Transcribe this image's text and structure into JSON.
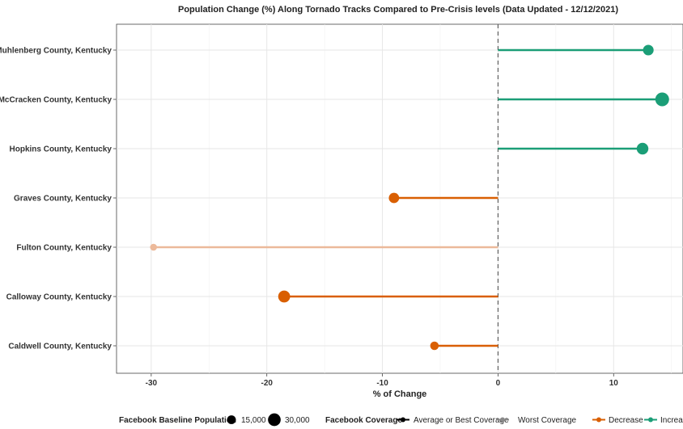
{
  "chart_data": {
    "type": "lollipop",
    "title": "Population Change (%) Along Tornado Tracks Compared to Pre-Crisis levels (Data Updated - 12/12/2021)",
    "xlabel": "% of Change",
    "ylabel": "",
    "xlim": [
      -33,
      16
    ],
    "x_ticks": [
      -30,
      -20,
      -10,
      0,
      10
    ],
    "x_tick_labels": [
      "-30",
      "-20",
      "-10",
      "0",
      "10"
    ],
    "grid": true,
    "reference_line": 0,
    "categories": [
      "Muhlenberg County, Kentucky",
      "McCracken County, Kentucky",
      "Hopkins County, Kentucky",
      "Graves County, Kentucky",
      "Fulton County, Kentucky",
      "Calloway County, Kentucky",
      "Caldwell County, Kentucky"
    ],
    "values": [
      13.0,
      14.2,
      12.5,
      -9.0,
      -29.8,
      -18.5,
      -5.5
    ],
    "direction": [
      "Increase",
      "Increase",
      "Increase",
      "Decrease",
      "Decrease",
      "Decrease",
      "Decrease"
    ],
    "coverage": [
      "Average or Best Coverage",
      "Average or Best Coverage",
      "Average or Best Coverage",
      "Average or Best Coverage",
      "Worst Coverage",
      "Average or Best Coverage",
      "Average or Best Coverage"
    ],
    "baseline_population": [
      22000,
      34000,
      26000,
      21000,
      8000,
      27000,
      14000
    ],
    "legend_placement": "bottom",
    "legend": {
      "size": {
        "title": "Facebook Baseline Population",
        "items": [
          {
            "label": "15,000",
            "value": 15000
          },
          {
            "label": "30,000",
            "value": 30000
          }
        ]
      },
      "coverage": {
        "title": "Facebook Coverage",
        "items": [
          {
            "label": "Average or Best Coverage",
            "color": "#000000"
          },
          {
            "label": "Worst Coverage",
            "color": "#8a8a8a"
          }
        ]
      },
      "direction": {
        "title": "",
        "items": [
          {
            "label": "Decrease",
            "color": "#d95f02"
          },
          {
            "label": "Increase",
            "color": "#1b9e77"
          }
        ]
      }
    },
    "colors": {
      "increase": "#1b9e77",
      "decrease": "#d95f02",
      "decrease_faded": "#ecb99a",
      "grid": "#e6e6e6",
      "zero_line": "#555555"
    }
  }
}
